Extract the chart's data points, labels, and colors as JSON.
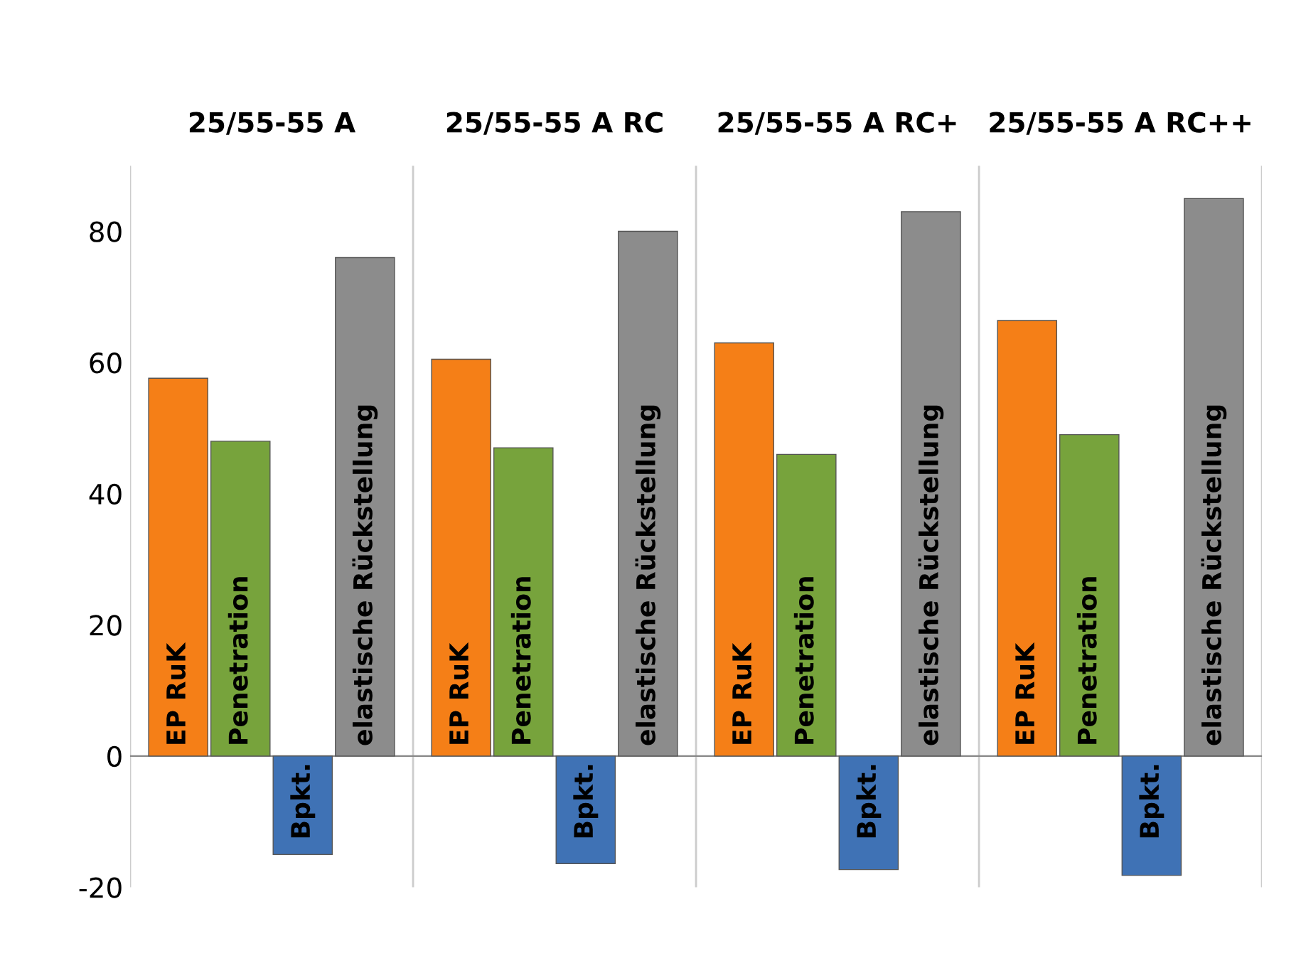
{
  "chart_data": {
    "type": "bar",
    "categories": [
      "25/55-55 A",
      "25/55-55 A RC",
      "25/55-55 A RC+",
      "25/55-55 A RC++"
    ],
    "series": [
      {
        "name": "EP RuK",
        "color": "#f57f17",
        "values": [
          57.6,
          60.5,
          63,
          66.4
        ]
      },
      {
        "name": "Penetration",
        "color": "#77a33c",
        "values": [
          48,
          47,
          46,
          49
        ]
      },
      {
        "name": "Bpkt.",
        "color": "#3f72b5",
        "values": [
          -15,
          -16.4,
          -17.3,
          -18.2
        ]
      },
      {
        "name": "elastische Rückstellung",
        "color": "#8c8c8c",
        "values": [
          76,
          80,
          83,
          85
        ]
      }
    ],
    "ylim": [
      -20,
      90
    ],
    "yticks": [
      -20,
      0,
      20,
      40,
      60,
      80
    ],
    "grid": "x",
    "legend": false
  }
}
